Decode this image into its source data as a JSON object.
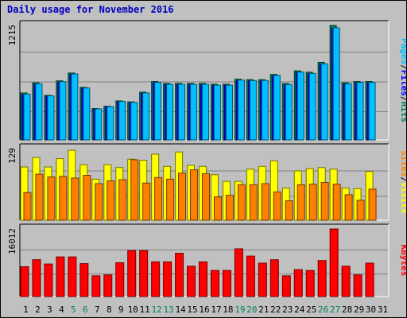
{
  "chart_data": {
    "title": "Daily usage for November 2016",
    "x": [
      1,
      2,
      3,
      4,
      5,
      6,
      7,
      8,
      9,
      10,
      11,
      12,
      13,
      14,
      15,
      16,
      17,
      18,
      19,
      20,
      21,
      22,
      23,
      24,
      25,
      26,
      27,
      28,
      29,
      30,
      31
    ],
    "weekend_days": [
      5,
      6,
      12,
      13,
      19,
      20,
      26,
      27
    ],
    "colors": {
      "hits": "#00805c",
      "files": "#0000ff",
      "pages": "#00c0ff",
      "visits": "#ffff00",
      "sites": "#ff8000",
      "kbytes": "#ff0000",
      "weekday_label": "#000000",
      "weekend_label": "#00805c",
      "title": "#0000c0"
    },
    "panels": [
      {
        "type": "bar",
        "ymax": 1215,
        "ymax_label": "1215",
        "legend": [
          "Pages",
          "/",
          "Files",
          "/",
          "Hits"
        ],
        "legend_colors": [
          "#00c0ff",
          "#000000",
          "#0000ff",
          "#000000",
          "#00805c"
        ],
        "series": [
          {
            "name": "Hits",
            "color": "#00805c",
            "values": [
              498,
              606,
              473,
              627,
              710,
              558,
              333,
              357,
              414,
              404,
              507,
              620,
              600,
              600,
              600,
              600,
              591,
              591,
              645,
              640,
              640,
              695,
              598,
              733,
              719,
              823,
              1215,
              606,
              620,
              620,
              null
            ]
          },
          {
            "name": "Files",
            "color": "#0000ff",
            "values": [
              480,
              590,
              463,
              612,
              695,
              548,
              326,
              350,
              404,
              394,
              494,
              605,
              586,
              586,
              586,
              586,
              577,
              577,
              630,
              625,
              625,
              679,
              584,
              716,
              702,
              803,
              1185,
              592,
              606,
              606,
              null
            ]
          },
          {
            "name": "Pages",
            "color": "#00c0ff",
            "values": [
              486,
              595,
              468,
              618,
              700,
              551,
              329,
              353,
              408,
              398,
              499,
              610,
              590,
              590,
              590,
              590,
              581,
              581,
              635,
              630,
              630,
              684,
              588,
              720,
              706,
              808,
              1190,
              596,
              610,
              610,
              null
            ]
          }
        ]
      },
      {
        "type": "bar",
        "ymax": 129,
        "ymax_label": "129",
        "legend": [
          "Sites",
          "/",
          "Visits"
        ],
        "legend_colors": [
          "#ff8000",
          "#000000",
          "#ffff00"
        ],
        "series": [
          {
            "name": "Visits",
            "color": "#ffff00",
            "values": [
              96,
              113,
              96,
              111,
              126,
              100,
              74,
              100,
              95,
              110,
              108,
              119,
              97,
              123,
              99,
              97,
              82,
              70,
              70,
              92,
              97,
              107,
              58,
              89,
              93,
              95,
              92,
              58,
              57,
              88,
              null
            ]
          },
          {
            "name": "Sites",
            "color": "#ff8000",
            "values": [
              50,
              83,
              78,
              79,
              76,
              81,
              66,
              71,
              73,
              109,
              67,
              77,
              74,
              85,
              91,
              84,
              42,
              45,
              64,
              64,
              66,
              51,
              35,
              64,
              65,
              68,
              65,
              46,
              36,
              56,
              null
            ]
          }
        ]
      },
      {
        "type": "bar",
        "ymax": 16012,
        "ymax_label": "16012",
        "legend": [
          "KBytes"
        ],
        "legend_colors": [
          "#ff0000"
        ],
        "series": [
          {
            "name": "KBytes",
            "color": "#ff0000",
            "values": [
              7060,
              8730,
              7710,
              9390,
              9390,
              7800,
              4920,
              5130,
              8010,
              10890,
              10890,
              8220,
              8220,
              10260,
              7180,
              8220,
              6170,
              6170,
              11310,
              9580,
              7920,
              8720,
              4920,
              6370,
              6170,
              8520,
              16012,
              7180,
              5130,
              7910,
              null
            ]
          }
        ]
      }
    ]
  }
}
